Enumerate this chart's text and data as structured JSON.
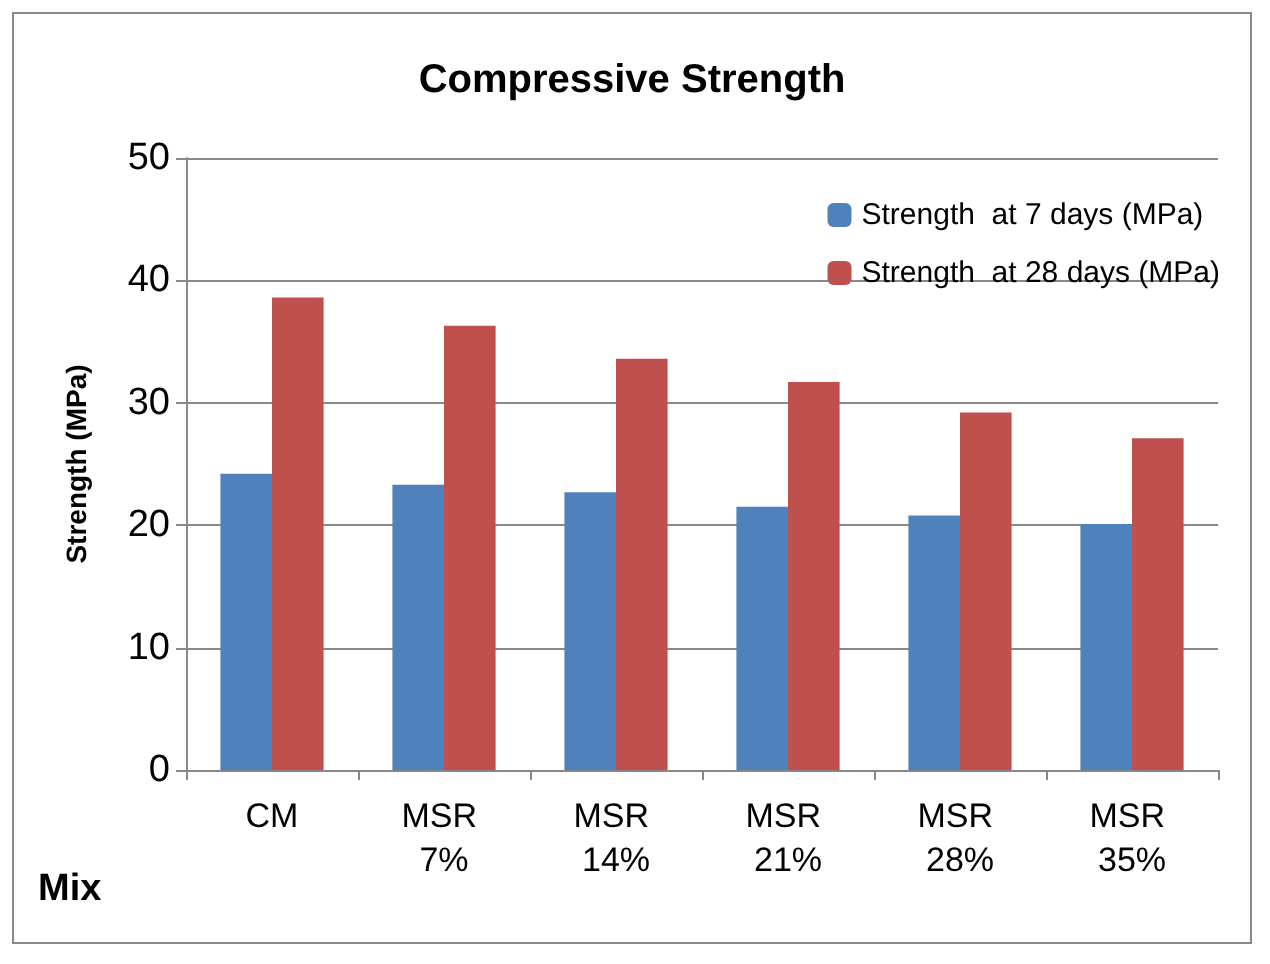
{
  "chart_data": {
    "type": "bar",
    "title": "Compressive Strength",
    "xlabel": "Mix",
    "ylabel": "Strength (MPa)",
    "categories": [
      "CM",
      "MSR 7%",
      "MSR 14%",
      "MSR 21%",
      "MSR 28%",
      "MSR 35%"
    ],
    "series": [
      {
        "name": "Strength  at 7 days (MPa)",
        "color": "#4f81bd",
        "values": [
          24.2,
          23.3,
          22.7,
          21.5,
          20.8,
          20.1
        ]
      },
      {
        "name": "Strength  at 28 days (MPa)",
        "color": "#c0504d",
        "values": [
          38.6,
          36.3,
          33.6,
          31.7,
          29.2,
          27.1
        ]
      }
    ],
    "ylim": [
      0,
      50
    ],
    "yticks": [
      0,
      10,
      20,
      30,
      40,
      50
    ],
    "grid": "y",
    "legend": "top right"
  }
}
